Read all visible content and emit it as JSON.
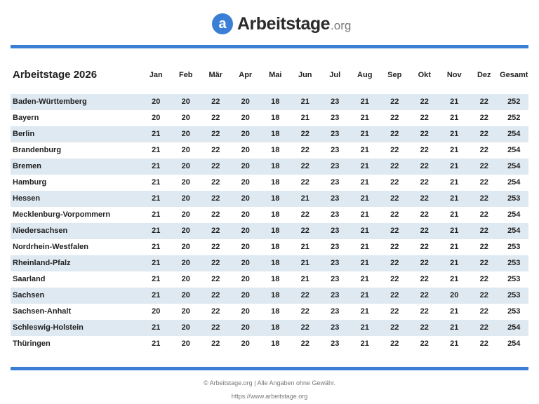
{
  "logo": {
    "brand": "Arbeitstage",
    "tld": ".org",
    "icon": "at-sign-icon",
    "color": "#3a7fd5"
  },
  "table": {
    "title": "Arbeitstage 2026",
    "headers": [
      "Jan",
      "Feb",
      "Mär",
      "Apr",
      "Mai",
      "Jun",
      "Jul",
      "Aug",
      "Sep",
      "Okt",
      "Nov",
      "Dez",
      "Gesamt"
    ],
    "rows": [
      {
        "state": "Baden-Württemberg",
        "values": [
          20,
          20,
          22,
          20,
          18,
          21,
          23,
          21,
          22,
          22,
          21,
          22,
          252
        ]
      },
      {
        "state": "Bayern",
        "values": [
          20,
          20,
          22,
          20,
          18,
          21,
          23,
          21,
          22,
          22,
          21,
          22,
          252
        ]
      },
      {
        "state": "Berlin",
        "values": [
          21,
          20,
          22,
          20,
          18,
          22,
          23,
          21,
          22,
          22,
          21,
          22,
          254
        ]
      },
      {
        "state": "Brandenburg",
        "values": [
          21,
          20,
          22,
          20,
          18,
          22,
          23,
          21,
          22,
          22,
          21,
          22,
          254
        ]
      },
      {
        "state": "Bremen",
        "values": [
          21,
          20,
          22,
          20,
          18,
          22,
          23,
          21,
          22,
          22,
          21,
          22,
          254
        ]
      },
      {
        "state": "Hamburg",
        "values": [
          21,
          20,
          22,
          20,
          18,
          22,
          23,
          21,
          22,
          22,
          21,
          22,
          254
        ]
      },
      {
        "state": "Hessen",
        "values": [
          21,
          20,
          22,
          20,
          18,
          21,
          23,
          21,
          22,
          22,
          21,
          22,
          253
        ]
      },
      {
        "state": "Mecklenburg-Vorpommern",
        "values": [
          21,
          20,
          22,
          20,
          18,
          22,
          23,
          21,
          22,
          22,
          21,
          22,
          254
        ]
      },
      {
        "state": "Niedersachsen",
        "values": [
          21,
          20,
          22,
          20,
          18,
          22,
          23,
          21,
          22,
          22,
          21,
          22,
          254
        ]
      },
      {
        "state": "Nordrhein-Westfalen",
        "values": [
          21,
          20,
          22,
          20,
          18,
          21,
          23,
          21,
          22,
          22,
          21,
          22,
          253
        ]
      },
      {
        "state": "Rheinland-Pfalz",
        "values": [
          21,
          20,
          22,
          20,
          18,
          21,
          23,
          21,
          22,
          22,
          21,
          22,
          253
        ]
      },
      {
        "state": "Saarland",
        "values": [
          21,
          20,
          22,
          20,
          18,
          21,
          23,
          21,
          22,
          22,
          21,
          22,
          253
        ]
      },
      {
        "state": "Sachsen",
        "values": [
          21,
          20,
          22,
          20,
          18,
          22,
          23,
          21,
          22,
          22,
          20,
          22,
          253
        ]
      },
      {
        "state": "Sachsen-Anhalt",
        "values": [
          20,
          20,
          22,
          20,
          18,
          22,
          23,
          21,
          22,
          22,
          21,
          22,
          253
        ]
      },
      {
        "state": "Schleswig-Holstein",
        "values": [
          21,
          20,
          22,
          20,
          18,
          22,
          23,
          21,
          22,
          22,
          21,
          22,
          254
        ]
      },
      {
        "state": "Thüringen",
        "values": [
          21,
          20,
          22,
          20,
          18,
          22,
          23,
          21,
          22,
          22,
          21,
          22,
          254
        ]
      }
    ]
  },
  "footer": {
    "copyright": "© Arbeitstage.org | Alle Angaben ohne Gewähr.",
    "url": "https://www.arbeitstage.org"
  }
}
